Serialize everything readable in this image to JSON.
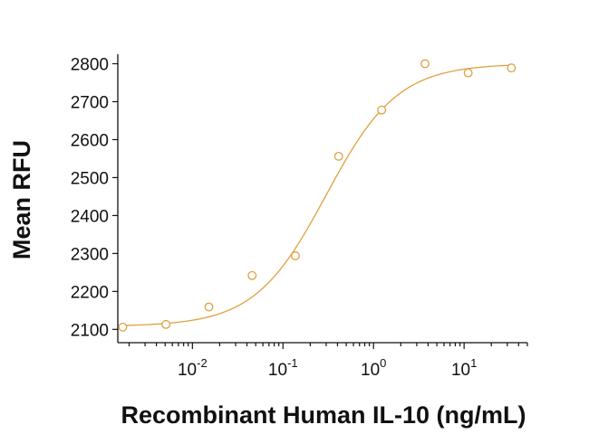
{
  "chart_data": {
    "type": "scatter",
    "title": "",
    "xlabel": "Recombinant Human IL-10 (ng/mL)",
    "ylabel": "Mean RFU",
    "xscale": "log",
    "xlim": [
      0.0015,
      50
    ],
    "ylim": [
      2065,
      2825
    ],
    "grid": false,
    "legend": "none",
    "colors": {
      "series": "#E0A040",
      "axis": "#111111"
    },
    "y_ticks": [
      2100,
      2200,
      2300,
      2400,
      2500,
      2600,
      2700,
      2800
    ],
    "x_ticks": [
      {
        "value": 0.01,
        "base": "10",
        "exp": "-2"
      },
      {
        "value": 0.1,
        "base": "10",
        "exp": "-1"
      },
      {
        "value": 1,
        "base": "10",
        "exp": "0"
      },
      {
        "value": 10,
        "base": "10",
        "exp": "1"
      }
    ],
    "series": [
      {
        "points": [
          {
            "x": 0.0017,
            "y": 2106
          },
          {
            "x": 0.0051,
            "y": 2113
          },
          {
            "x": 0.0152,
            "y": 2159
          },
          {
            "x": 0.0457,
            "y": 2242
          },
          {
            "x": 0.137,
            "y": 2294
          },
          {
            "x": 0.412,
            "y": 2556
          },
          {
            "x": 1.23,
            "y": 2678
          },
          {
            "x": 3.7,
            "y": 2800
          },
          {
            "x": 11.1,
            "y": 2776
          },
          {
            "x": 33.3,
            "y": 2789
          }
        ],
        "fit": {
          "model": "4PL",
          "bottom": 2108,
          "top": 2800,
          "ec50": 0.3,
          "hill": 1.1,
          "x_range": [
            0.0017,
            33.3
          ]
        }
      }
    ]
  }
}
